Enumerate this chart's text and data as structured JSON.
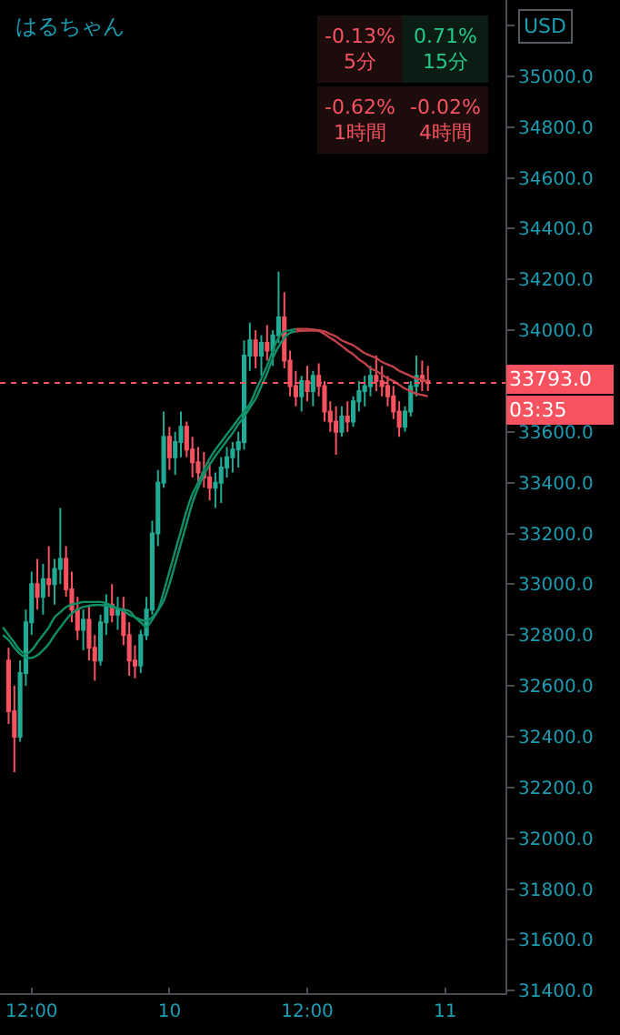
{
  "chart_data": {
    "type": "candlestick",
    "title": "はるちゃん",
    "categories": [
      null,
      null,
      null,
      null,
      null,
      "12:00",
      null,
      null,
      null,
      null,
      null,
      null,
      null,
      null,
      null,
      null,
      null,
      null,
      null,
      null,
      null,
      null,
      null,
      null,
      null,
      null,
      null,
      null,
      null,
      "10",
      null,
      null,
      null,
      null,
      null,
      null,
      null,
      null,
      null,
      null,
      null,
      null,
      null,
      null,
      null,
      null,
      null,
      null,
      null,
      null,
      null,
      null,
      null,
      "12:00",
      null,
      null,
      null,
      null,
      null,
      null,
      null,
      null,
      null,
      null,
      null,
      null,
      null,
      null,
      null,
      null,
      null,
      null,
      null,
      null,
      null,
      null,
      null,
      "11",
      null,
      null,
      null,
      null,
      null,
      null,
      null,
      null,
      null,
      null
    ],
    "ohlc": [
      null,
      [
        32700,
        32750,
        32450,
        32500
      ],
      [
        32500,
        32600,
        32260,
        32400
      ],
      [
        32400,
        32700,
        32380,
        32650
      ],
      [
        32650,
        32900,
        32600,
        32850
      ],
      [
        32850,
        33050,
        32800,
        33000
      ],
      [
        33000,
        33100,
        32900,
        32950
      ],
      [
        32950,
        33080,
        32880,
        33020
      ],
      [
        33020,
        33150,
        32950,
        33000
      ],
      [
        33000,
        33100,
        32920,
        33060
      ],
      [
        33060,
        33300,
        33000,
        33100
      ],
      [
        33100,
        33150,
        32950,
        32980
      ],
      [
        32980,
        33050,
        32850,
        32900
      ],
      [
        32900,
        32950,
        32780,
        32820
      ],
      [
        32820,
        32900,
        32740,
        32860
      ],
      [
        32860,
        32920,
        32700,
        32750
      ],
      [
        32750,
        32800,
        32620,
        32700
      ],
      [
        32700,
        32880,
        32680,
        32850
      ],
      [
        32850,
        32960,
        32800,
        32920
      ],
      [
        32920,
        33000,
        32850,
        32880
      ],
      [
        32880,
        32950,
        32820,
        32900
      ],
      [
        32900,
        32950,
        32760,
        32800
      ],
      [
        32800,
        32850,
        32640,
        32700
      ],
      [
        32700,
        32760,
        32630,
        32680
      ],
      [
        32680,
        32820,
        32650,
        32800
      ],
      [
        32800,
        32950,
        32780,
        32900
      ],
      [
        32900,
        33250,
        32880,
        33200
      ],
      [
        33200,
        33450,
        33150,
        33400
      ],
      [
        33400,
        33680,
        33380,
        33580
      ],
      [
        33580,
        33620,
        33450,
        33500
      ],
      [
        33500,
        33600,
        33430,
        33560
      ],
      [
        33560,
        33680,
        33500,
        33620
      ],
      [
        33620,
        33640,
        33500,
        33530
      ],
      [
        33530,
        33580,
        33420,
        33480
      ],
      [
        33480,
        33540,
        33400,
        33440
      ],
      [
        33440,
        33520,
        33380,
        33420
      ],
      [
        33420,
        33480,
        33330,
        33380
      ],
      [
        33380,
        33440,
        33300,
        33400
      ],
      [
        33400,
        33500,
        33320,
        33460
      ],
      [
        33460,
        33540,
        33420,
        33500
      ],
      [
        33500,
        33560,
        33440,
        33530
      ],
      [
        33530,
        33600,
        33460,
        33560
      ],
      [
        33560,
        33960,
        33530,
        33900
      ],
      [
        33900,
        34030,
        33840,
        33960
      ],
      [
        33960,
        34000,
        33850,
        33900
      ],
      [
        33900,
        33980,
        33820,
        33950
      ],
      [
        33950,
        34020,
        33880,
        33920
      ],
      [
        33920,
        34000,
        33860,
        33980
      ],
      [
        33980,
        34230,
        33950,
        34050
      ],
      [
        34050,
        34150,
        33850,
        33880
      ],
      [
        33880,
        33920,
        33740,
        33780
      ],
      [
        33780,
        33840,
        33700,
        33740
      ],
      [
        33740,
        33820,
        33680,
        33800
      ],
      [
        33800,
        33860,
        33720,
        33760
      ],
      [
        33760,
        33840,
        33700,
        33820
      ],
      [
        33820,
        33870,
        33740,
        33780
      ],
      [
        33780,
        33800,
        33640,
        33680
      ],
      [
        33680,
        33720,
        33600,
        33640
      ],
      [
        33640,
        33700,
        33510,
        33600
      ],
      [
        33600,
        33700,
        33580,
        33660
      ],
      [
        33660,
        33720,
        33600,
        33640
      ],
      [
        33640,
        33740,
        33620,
        33720
      ],
      [
        33720,
        33800,
        33680,
        33760
      ],
      [
        33760,
        33820,
        33700,
        33780
      ],
      [
        33780,
        33860,
        33740,
        33820
      ],
      [
        33820,
        33900,
        33760,
        33800
      ],
      [
        33800,
        33860,
        33740,
        33780
      ],
      [
        33780,
        33820,
        33700,
        33740
      ],
      [
        33740,
        33780,
        33650,
        33680
      ],
      [
        33680,
        33720,
        33580,
        33620
      ],
      [
        33620,
        33700,
        33600,
        33680
      ],
      [
        33680,
        33800,
        33660,
        33780
      ],
      [
        33780,
        33900,
        33740,
        33820
      ],
      [
        33820,
        33880,
        33760,
        33800
      ],
      [
        33800,
        33860,
        33760,
        33793
      ],
      null,
      null,
      null,
      null,
      null,
      null,
      null,
      null,
      null,
      null,
      null,
      null,
      null
    ],
    "colors": [
      null,
      "#f7525f",
      "#f7525f",
      "#22ab94",
      "#22ab94",
      "#22ab94",
      "#f7525f",
      "#22ab94",
      "#f7525f",
      "#22ab94",
      "#22ab94",
      "#f7525f",
      "#f7525f",
      "#f7525f",
      "#22ab94",
      "#f7525f",
      "#f7525f",
      "#22ab94",
      "#22ab94",
      "#f7525f",
      "#22ab94",
      "#f7525f",
      "#f7525f",
      "#f7525f",
      "#22ab94",
      "#22ab94",
      "#22ab94",
      "#22ab94",
      "#22ab94",
      "#f7525f",
      "#22ab94",
      "#22ab94",
      "#f7525f",
      "#f7525f",
      "#f7525f",
      "#f7525f",
      "#f7525f",
      "#22ab94",
      "#22ab94",
      "#22ab94",
      "#22ab94",
      "#22ab94",
      "#22ab94",
      "#22ab94",
      "#f7525f",
      "#22ab94",
      "#f7525f",
      "#22ab94",
      "#22ab94",
      "#f7525f",
      "#f7525f",
      "#f7525f",
      "#22ab94",
      "#f7525f",
      "#22ab94",
      "#f7525f",
      "#f7525f",
      "#f7525f",
      "#f7525f",
      "#22ab94",
      "#f7525f",
      "#22ab94",
      "#22ab94",
      "#22ab94",
      "#22ab94",
      "#f7525f",
      "#f7525f",
      "#f7525f",
      "#f7525f",
      "#f7525f",
      "#22ab94",
      "#22ab94",
      "#22ab94",
      "#f7525f",
      "#f7525f",
      null,
      null,
      null,
      null,
      null,
      null,
      null,
      null,
      null,
      null,
      null,
      null,
      null
    ],
    "series": [
      {
        "type": "line",
        "color": "#0f8f68",
        "values": [
          32830,
          32800,
          32770,
          32740,
          32725,
          32740,
          32770,
          32800,
          32830,
          32870,
          32890,
          32910,
          32920,
          32925,
          32930,
          32930,
          32930,
          32930,
          32925,
          32915,
          32905,
          32895,
          32880,
          32870,
          32860,
          32855,
          32870,
          32900,
          32970,
          33050,
          33130,
          33210,
          33290,
          33355,
          33400,
          33450,
          33495,
          33530,
          33560,
          33590,
          33620,
          33650,
          33680,
          33710,
          33760,
          33810,
          33860,
          33920,
          33970,
          33995,
          34000,
          34005,
          null,
          null,
          null,
          null,
          null,
          null,
          null,
          null,
          null,
          null,
          null,
          null,
          null,
          null,
          null,
          null,
          null,
          null,
          null,
          null,
          null,
          null,
          null,
          null,
          null,
          null,
          null,
          null,
          null,
          null,
          null,
          null,
          null,
          null,
          null,
          null
        ]
      },
      {
        "type": "line",
        "color": "#c2424a",
        "values": [
          null,
          null,
          null,
          null,
          null,
          null,
          null,
          null,
          null,
          null,
          null,
          null,
          null,
          null,
          null,
          null,
          null,
          null,
          null,
          null,
          null,
          null,
          null,
          null,
          null,
          null,
          null,
          null,
          null,
          null,
          null,
          null,
          null,
          null,
          null,
          null,
          null,
          null,
          null,
          null,
          null,
          null,
          null,
          null,
          null,
          null,
          null,
          null,
          null,
          null,
          null,
          34005,
          34005,
          34005,
          34003,
          34000,
          33995,
          33985,
          33975,
          33960,
          33950,
          33940,
          33925,
          33910,
          33900,
          33890,
          33875,
          33865,
          33855,
          33840,
          33830,
          33820,
          33810,
          33805,
          33798,
          null,
          null,
          null,
          null,
          null,
          null,
          null,
          null,
          null,
          null,
          null,
          null,
          null
        ]
      },
      {
        "type": "line",
        "color": "#0f8f68",
        "values": [
          32800,
          32780,
          32750,
          32725,
          32712,
          32710,
          32720,
          32740,
          32765,
          32800,
          32830,
          32860,
          32885,
          32900,
          32910,
          32915,
          32918,
          32918,
          32915,
          32910,
          32905,
          32900,
          32895,
          32870,
          32850,
          32832,
          32860,
          32895,
          32935,
          33000,
          33080,
          33160,
          33240,
          33320,
          33380,
          33430,
          33470,
          33505,
          33535,
          33565,
          33595,
          33630,
          33660,
          33695,
          33730,
          33780,
          33830,
          33890,
          33935,
          33970,
          33990,
          33995,
          null,
          null,
          null,
          null,
          null,
          null,
          null,
          null,
          null,
          null,
          null,
          null,
          null,
          null,
          null,
          null,
          null,
          null,
          null,
          null,
          null,
          null,
          null,
          null,
          null,
          null,
          null,
          null,
          null,
          null,
          null,
          null,
          null,
          null,
          null,
          null
        ]
      },
      {
        "type": "line",
        "color": "#c2424a",
        "values": [
          null,
          null,
          null,
          null,
          null,
          null,
          null,
          null,
          null,
          null,
          null,
          null,
          null,
          null,
          null,
          null,
          null,
          null,
          null,
          null,
          null,
          null,
          null,
          null,
          null,
          null,
          null,
          null,
          null,
          null,
          null,
          null,
          null,
          null,
          null,
          null,
          null,
          null,
          null,
          null,
          null,
          null,
          null,
          null,
          null,
          null,
          null,
          null,
          null,
          null,
          null,
          33995,
          33997,
          33998,
          33998,
          33997,
          33985,
          33970,
          33955,
          33938,
          33920,
          33905,
          33885,
          33870,
          33850,
          33840,
          33825,
          33810,
          33800,
          33785,
          33770,
          33760,
          33750,
          33745,
          33740,
          null,
          null,
          null,
          null,
          null,
          null,
          null,
          null,
          null,
          null,
          null,
          null,
          null
        ]
      }
    ],
    "ylim": [
      31390,
      35300
    ],
    "yticks": [
      {
        "value": 31400,
        "label": "31400.0"
      },
      {
        "value": 31600,
        "label": "31600.0"
      },
      {
        "value": 31800,
        "label": "31800.0"
      },
      {
        "value": 32000,
        "label": "32000.0"
      },
      {
        "value": 32200,
        "label": "32200.0"
      },
      {
        "value": 32400,
        "label": "32400.0"
      },
      {
        "value": 32600,
        "label": "32600.0"
      },
      {
        "value": 32800,
        "label": "32800.0"
      },
      {
        "value": 33000,
        "label": "33000.0"
      },
      {
        "value": 33200,
        "label": "33200.0"
      },
      {
        "value": 33400,
        "label": "33400.0"
      },
      {
        "value": 33600,
        "label": "33600.0"
      },
      {
        "value": 33800,
        "label": null
      },
      {
        "value": 34000,
        "label": "34000.0"
      },
      {
        "value": 34200,
        "label": "34200.0"
      },
      {
        "value": 34400,
        "label": "34400.0"
      },
      {
        "value": 34600,
        "label": "34600.0"
      },
      {
        "value": 34800,
        "label": "34800.0"
      },
      {
        "value": 35000,
        "label": "35000.0"
      },
      {
        "value": 35200,
        "label": null
      }
    ],
    "ref_lines": [
      {
        "axis": "y",
        "value": 33793,
        "label": "33793.0",
        "color": "#f7525f",
        "line_style": "dotted"
      }
    ],
    "annotations": [
      "USD",
      "-0.13%",
      "5分",
      "0.71%",
      "15分",
      "-0.62%",
      "1時間",
      "-0.02%",
      "4時間",
      "03:35"
    ],
    "grid": false
  }
}
